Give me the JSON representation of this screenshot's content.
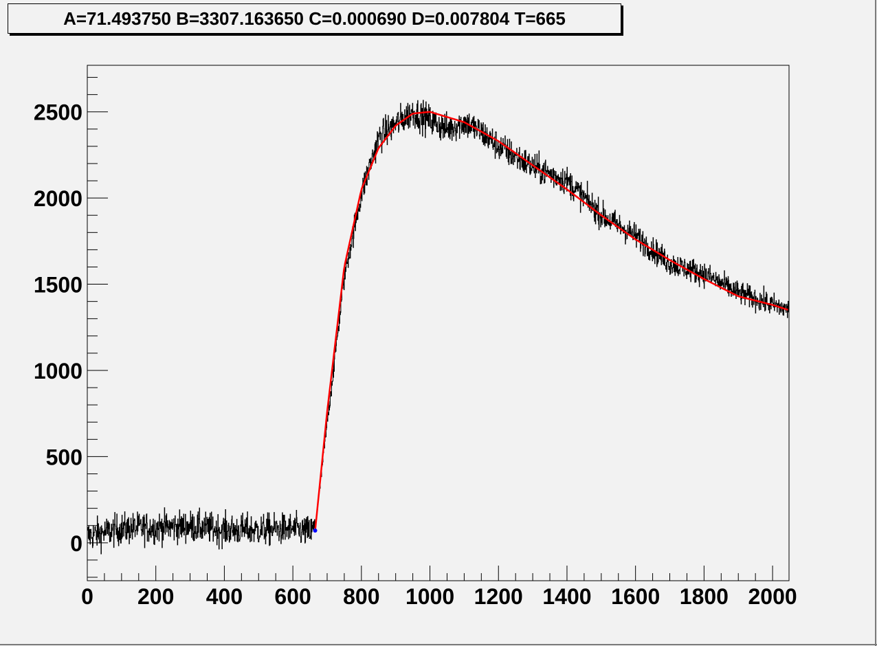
{
  "title": "A=71.493750 B=3307.163650 C=0.000690 D=0.007804 T=665",
  "chart_data": {
    "type": "line",
    "title": "A=71.493750 B=3307.163650 C=0.000690 D=0.007804 T=665",
    "xlabel": "",
    "ylabel": "",
    "xlim": [
      0,
      2048
    ],
    "ylim": [
      -220,
      2770
    ],
    "x_ticks": [
      0,
      200,
      400,
      600,
      800,
      1000,
      1200,
      1400,
      1600,
      1800,
      2000
    ],
    "y_ticks": [
      0,
      500,
      1000,
      1500,
      2000,
      2500
    ],
    "grid": false,
    "legend": "none",
    "fit_parameters": {
      "A": 71.49375,
      "B": 3307.16365,
      "C": 0.00069,
      "D": 0.007804,
      "T": 665
    },
    "series": [
      {
        "kind": "histogram",
        "color": "#000000",
        "noise_amplitude": 130,
        "x": [
          0,
          100,
          200,
          300,
          400,
          500,
          600,
          650,
          665,
          700,
          750,
          800,
          850,
          900,
          950,
          1000,
          1050,
          1100,
          1150,
          1200,
          1300,
          1400,
          1500,
          1600,
          1700,
          1800,
          1900,
          2000,
          2047
        ],
        "values": [
          40,
          80,
          90,
          95,
          75,
          75,
          80,
          60,
          90,
          700,
          1550,
          2030,
          2350,
          2430,
          2500,
          2450,
          2400,
          2440,
          2380,
          2300,
          2180,
          2100,
          1900,
          1780,
          1620,
          1560,
          1450,
          1380,
          1350
        ]
      },
      {
        "kind": "fit",
        "color": "#ff0000",
        "x": [
          665,
          700,
          750,
          800,
          850,
          900,
          950,
          1000,
          1100,
          1200,
          1300,
          1400,
          1500,
          1600,
          1700,
          1800,
          1900,
          2000,
          2047
        ],
        "values": [
          71,
          760,
          1600,
          2050,
          2290,
          2420,
          2490,
          2500,
          2440,
          2330,
          2190,
          2050,
          1900,
          1760,
          1640,
          1530,
          1430,
          1380,
          1350
        ]
      },
      {
        "kind": "marker",
        "color": "#0000ff",
        "x": [
          665
        ],
        "values": [
          71
        ]
      }
    ]
  }
}
